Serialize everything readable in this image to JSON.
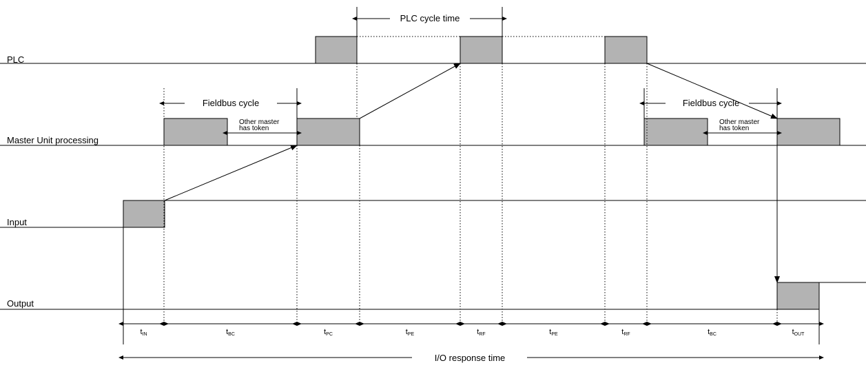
{
  "tracks": {
    "plc": "PLC",
    "master": "Master Unit processing",
    "input": "Input",
    "output": "Output"
  },
  "cycles": {
    "plc_cycle": "PLC cycle time",
    "fieldbus_cycle_1": "Fieldbus cycle",
    "fieldbus_cycle_2": "Fieldbus cycle"
  },
  "token_notes": {
    "note_1": {
      "line1": "Other master",
      "line2": "has token"
    },
    "note_2": {
      "line1": "Other master",
      "line2": "has token"
    }
  },
  "segments": [
    {
      "main": "t",
      "sub": "IN"
    },
    {
      "main": "t",
      "sub": "BC"
    },
    {
      "main": "t",
      "sub": "PC"
    },
    {
      "main": "t",
      "sub": "PE"
    },
    {
      "main": "t",
      "sub": "RF"
    },
    {
      "main": "t",
      "sub": "PE"
    },
    {
      "main": "t",
      "sub": "RF"
    },
    {
      "main": "t",
      "sub": "BC"
    },
    {
      "main": "t",
      "sub": "OUT"
    }
  ],
  "total": "I/O response time",
  "colors": {
    "block_fill": "#b3b3b3",
    "line": "#000000",
    "background": "#ffffff"
  }
}
